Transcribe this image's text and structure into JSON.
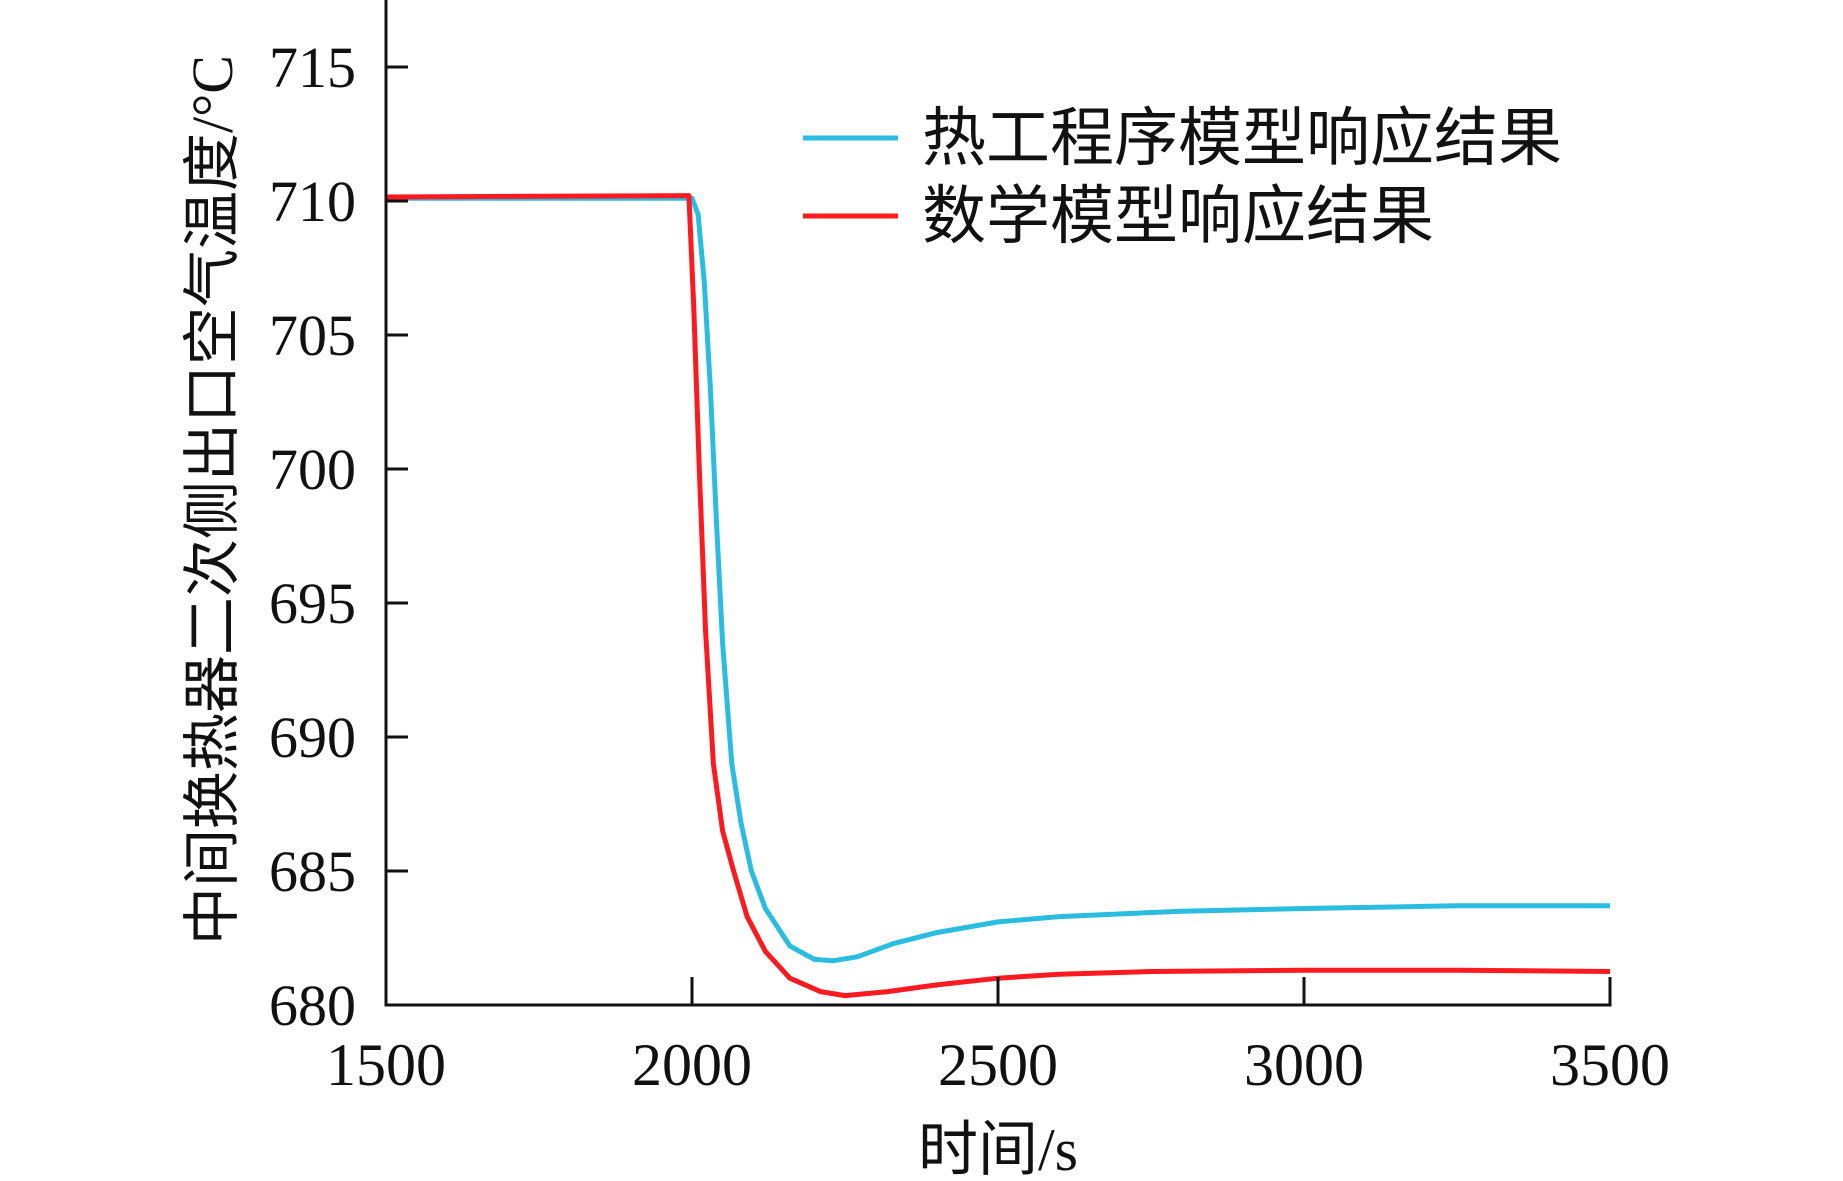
{
  "chart_data": {
    "type": "line",
    "title": "",
    "xlabel": "时间/s",
    "ylabel": "中间换热器二次侧出口空气温度/°C",
    "xlim": [
      1500,
      3500
    ],
    "ylim": [
      680,
      717.5
    ],
    "xticks": [
      1500,
      2000,
      2500,
      3000,
      3500
    ],
    "yticks": [
      680,
      685,
      690,
      695,
      700,
      705,
      710,
      715
    ],
    "grid": false,
    "legend_position": "top-right",
    "series": [
      {
        "name": "热工程序模型响应结果",
        "color": "#2bbde0",
        "x": [
          1500,
          2000,
          2010,
          2020,
          2030,
          2040,
          2050,
          2065,
          2080,
          2097,
          2120,
          2160,
          2200,
          2230,
          2270,
          2330,
          2400,
          2500,
          2600,
          2800,
          3000,
          3250,
          3500
        ],
        "y": [
          710.1,
          710.1,
          709.5,
          707,
          703,
          698,
          693.5,
          689,
          686.8,
          685,
          683.6,
          682.2,
          681.7,
          681.65,
          681.8,
          682.3,
          682.7,
          683.1,
          683.3,
          683.5,
          683.6,
          683.7,
          683.7
        ]
      },
      {
        "name": "数学模型响应结果",
        "color": "#fa1a1f",
        "x": [
          1500,
          1995,
          2003,
          2012,
          2022,
          2035,
          2050,
          2068,
          2090,
          2120,
          2160,
          2210,
          2250,
          2320,
          2400,
          2500,
          2600,
          2750,
          3000,
          3250,
          3500
        ],
        "y": [
          710.15,
          710.2,
          706,
          700,
          694,
          689,
          686.5,
          685,
          683.3,
          682,
          681,
          680.5,
          680.35,
          680.5,
          680.75,
          681.0,
          681.15,
          681.25,
          681.3,
          681.3,
          681.25
        ]
      }
    ]
  }
}
